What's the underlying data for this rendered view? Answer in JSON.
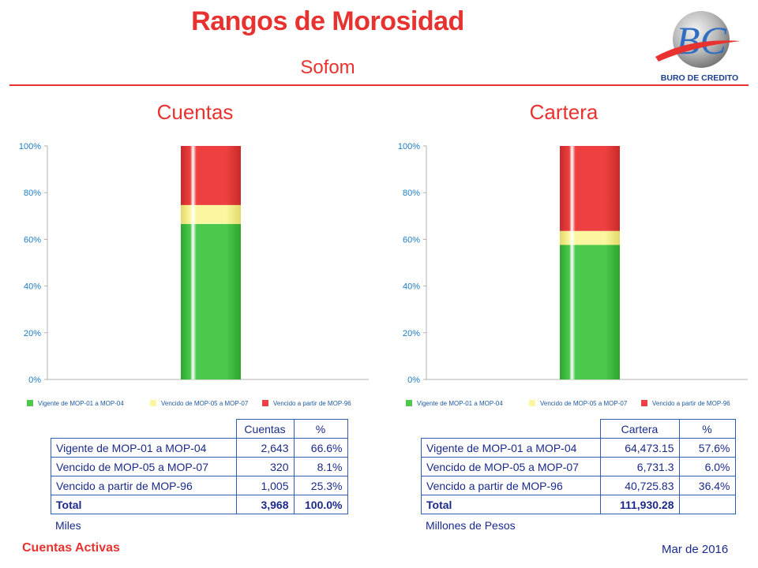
{
  "header": {
    "title": "Rangos de Morosidad",
    "subtitle": "Sofom",
    "logo_text": "BURO DE CREDITO",
    "logo_monogram": "BC"
  },
  "colors": {
    "accent": "#e8322f",
    "table_text": "#1a2a8a",
    "axis_text": "#1f7ac4",
    "vigente": "#4cc94c",
    "vencido_05_07": "#fbf7a0",
    "vencido_96": "#ee4040"
  },
  "chart_data": [
    {
      "type": "bar",
      "stacked": true,
      "title": "Cuentas",
      "categories": [
        ""
      ],
      "series": [
        {
          "name": "Vigente de MOP-01 a MOP-04",
          "values": [
            66.6
          ]
        },
        {
          "name": "Vencido de MOP-05 a MOP-07",
          "values": [
            8.1
          ]
        },
        {
          "name": "Vencido a partir de MOP-96",
          "values": [
            25.3
          ]
        }
      ],
      "yticks": [
        "0%",
        "20%",
        "40%",
        "60%",
        "80%",
        "100%"
      ],
      "ylim": [
        0,
        100
      ],
      "legend": "bottom",
      "grid": false
    },
    {
      "type": "bar",
      "stacked": true,
      "title": "Cartera",
      "categories": [
        ""
      ],
      "series": [
        {
          "name": "Vigente de MOP-01 a MOP-04",
          "values": [
            57.6
          ]
        },
        {
          "name": "Vencido de MOP-05 a MOP-07",
          "values": [
            6.0
          ]
        },
        {
          "name": "Vencido a partir de MOP-96",
          "values": [
            36.4
          ]
        }
      ],
      "yticks": [
        "0%",
        "20%",
        "40%",
        "60%",
        "80%",
        "100%"
      ],
      "ylim": [
        0,
        100
      ],
      "legend": "bottom",
      "grid": false
    }
  ],
  "tables": {
    "cuentas": {
      "headers": [
        "Cuentas",
        "%"
      ],
      "rows": [
        {
          "label": "Vigente de MOP-01 a MOP-04",
          "value": "2,643",
          "pct": "66.6%"
        },
        {
          "label": "Vencido de MOP-05 a MOP-07",
          "value": "320",
          "pct": "8.1%"
        },
        {
          "label": "Vencido a partir de MOP-96",
          "value": "1,005",
          "pct": "25.3%"
        }
      ],
      "total": {
        "label": "Total",
        "value": "3,968",
        "pct": "100.0%"
      },
      "unit": "Miles"
    },
    "cartera": {
      "headers": [
        "Cartera",
        "%"
      ],
      "rows": [
        {
          "label": "Vigente de MOP-01 a MOP-04",
          "value": "64,473.15",
          "pct": "57.6%"
        },
        {
          "label": "Vencido de MOP-05 a MOP-07",
          "value": "6,731.3",
          "pct": "6.0%"
        },
        {
          "label": "Vencido a partir de MOP-96",
          "value": "40,725.83",
          "pct": "36.4%"
        }
      ],
      "total": {
        "label": "Total",
        "value": "111,930.28",
        "pct": ""
      },
      "unit": "Millones de Pesos"
    }
  },
  "footer": {
    "left": "Cuentas Activas",
    "right": "Mar de 2016"
  }
}
